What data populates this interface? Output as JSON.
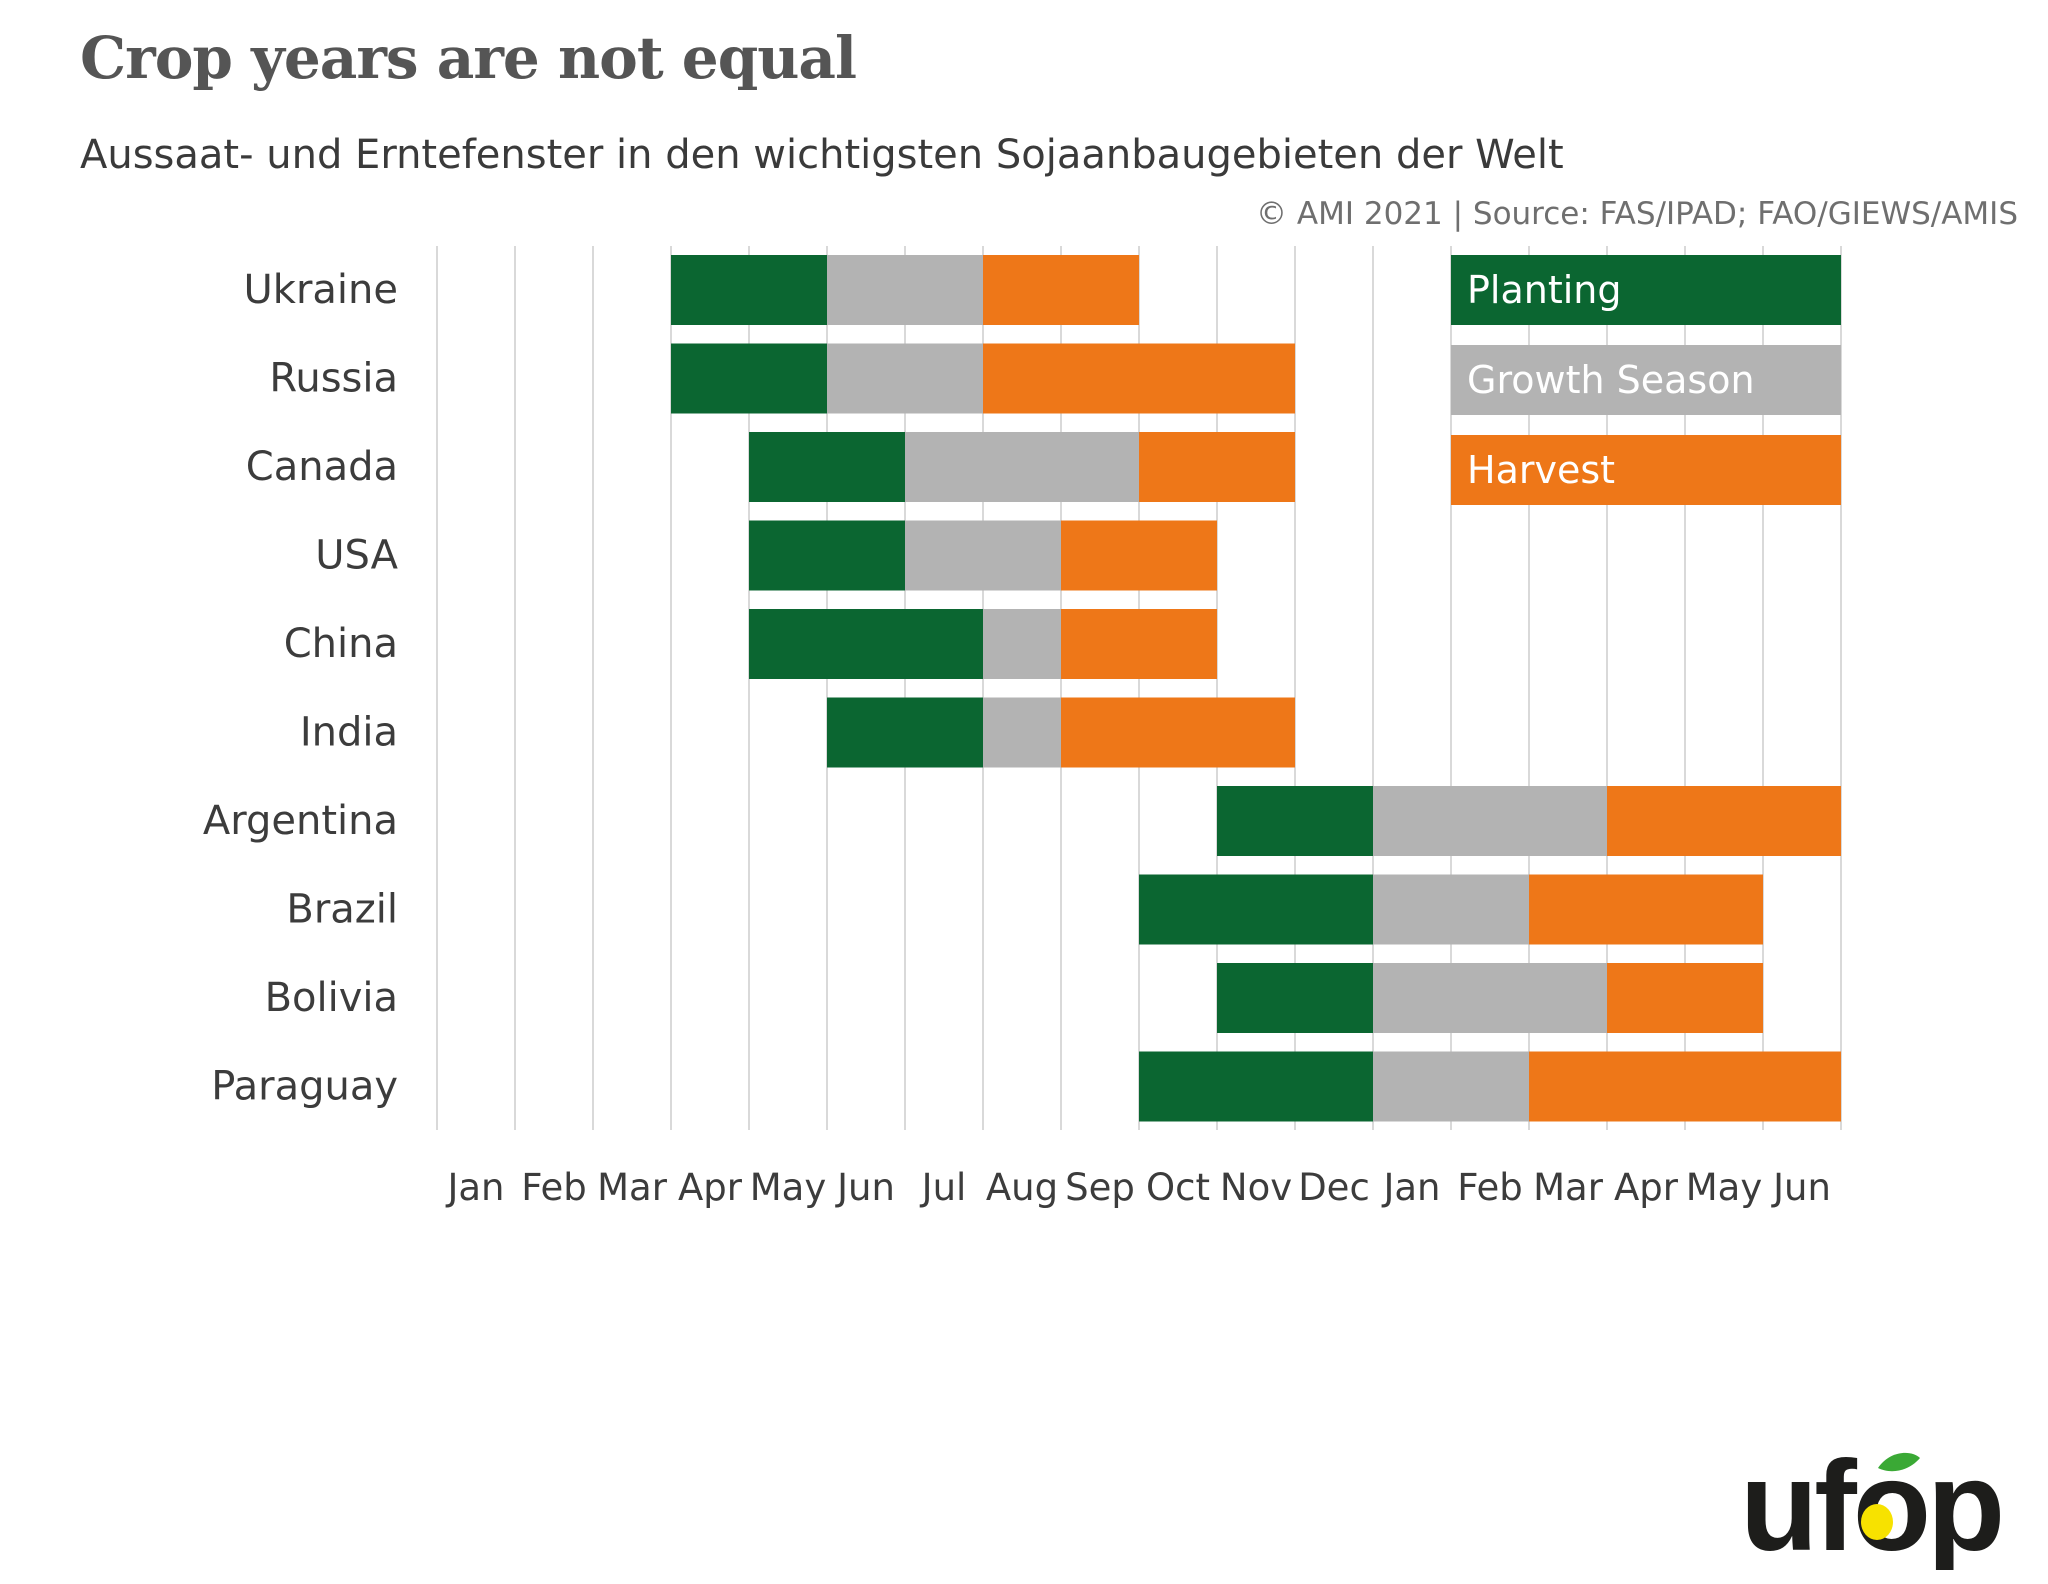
{
  "header": {
    "title": "Crop years are not equal",
    "subtitle": "Aussaat- und Erntefenster in den wichtigsten Sojaanbaugebieten der Welt",
    "source": "© AMI 2021 | Source: FAS/IPAD; FAO/GIEWS/AMIS"
  },
  "colors": {
    "planting": "#0b6631",
    "growth": "#b3b3b3",
    "harvest": "#ee7718",
    "grid": "#d9d9d9",
    "label": "#3c3c3c"
  },
  "logo": {
    "text": "ufop",
    "icon": "drop-leaf-icon",
    "brand_color": "#1d1d1b",
    "drop_color": "#f7e200",
    "leaf_color": "#3aa935"
  },
  "chart_data": {
    "type": "bar",
    "orientation": "horizontal-stacked-timeline",
    "title": "Crop years are not equal",
    "subtitle": "Aussaat- und Erntefenster in den wichtigsten Sojaanbaugebieten der Welt",
    "x_tick_labels": [
      "Jan",
      "Feb",
      "Mar",
      "Apr",
      "May",
      "Jun",
      "Jul",
      "Aug",
      "Sep",
      "Oct",
      "Nov",
      "Dec",
      "Jan",
      "Feb",
      "Mar",
      "Apr",
      "May",
      "Jun"
    ],
    "xlim": [
      0,
      18
    ],
    "grid": true,
    "legend": {
      "placement": "top-right",
      "entries": [
        {
          "key": "planting",
          "label": "Planting"
        },
        {
          "key": "growth",
          "label": "Growth Season"
        },
        {
          "key": "harvest",
          "label": "Harvest"
        }
      ]
    },
    "categories": [
      "Ukraine",
      "Russia",
      "Canada",
      "USA",
      "China",
      "India",
      "Argentina",
      "Brazil",
      "Bolivia",
      "Paraguay"
    ],
    "segments": [
      {
        "category": "Ukraine",
        "planting": [
          3,
          5
        ],
        "growth": [
          5,
          7
        ],
        "harvest": [
          7,
          9
        ]
      },
      {
        "category": "Russia",
        "planting": [
          3,
          5
        ],
        "growth": [
          5,
          7
        ],
        "harvest": [
          7,
          11
        ]
      },
      {
        "category": "Canada",
        "planting": [
          4,
          6
        ],
        "growth": [
          6,
          9
        ],
        "harvest": [
          9,
          11
        ]
      },
      {
        "category": "USA",
        "planting": [
          4,
          6
        ],
        "growth": [
          6,
          8
        ],
        "harvest": [
          8,
          10
        ]
      },
      {
        "category": "China",
        "planting": [
          4,
          7
        ],
        "growth": [
          7,
          8
        ],
        "harvest": [
          8,
          10
        ]
      },
      {
        "category": "India",
        "planting": [
          5,
          7
        ],
        "growth": [
          7,
          8
        ],
        "harvest": [
          8,
          11
        ]
      },
      {
        "category": "Argentina",
        "planting": [
          10,
          12
        ],
        "growth": [
          12,
          15
        ],
        "harvest": [
          15,
          18
        ]
      },
      {
        "category": "Brazil",
        "planting": [
          9,
          12
        ],
        "growth": [
          12,
          14
        ],
        "harvest": [
          14,
          17
        ]
      },
      {
        "category": "Bolivia",
        "planting": [
          10,
          12
        ],
        "growth": [
          12,
          15
        ],
        "harvest": [
          15,
          17
        ]
      },
      {
        "category": "Paraguay",
        "planting": [
          9,
          12
        ],
        "growth": [
          12,
          14
        ],
        "harvest": [
          14,
          18
        ]
      }
    ]
  }
}
